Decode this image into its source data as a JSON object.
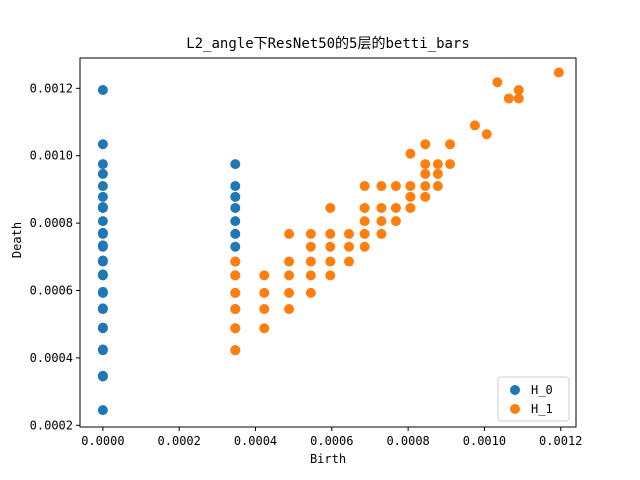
{
  "chart_data": {
    "type": "scatter",
    "title": "L2_angle下ResNet50的5层的betti_bars",
    "xlabel": "Birth",
    "ylabel": "Death",
    "xlim": [
      -6e-05,
      0.00124
    ],
    "ylim": [
      0.000195,
      0.00129
    ],
    "xticks": [
      0.0,
      0.0002,
      0.0004,
      0.0006,
      0.0008,
      0.001,
      0.0012
    ],
    "xtick_labels": [
      "0.0000",
      "0.0002",
      "0.0004",
      "0.0006",
      "0.0008",
      "0.0010",
      "0.0012"
    ],
    "yticks": [
      0.0002,
      0.0004,
      0.0006,
      0.0008,
      0.001,
      0.0012
    ],
    "ytick_labels": [
      "0.0002",
      "0.0004",
      "0.0006",
      "0.0008",
      "0.0010",
      "0.0012"
    ],
    "legend_position": "lower-right",
    "series": [
      {
        "name": "H_0",
        "color": "#1f77b4",
        "points": [
          [
            0,
            0.000245
          ],
          [
            0,
            0.000345
          ],
          [
            0,
            0.000347
          ],
          [
            0,
            0.000423
          ],
          [
            0,
            0.000425
          ],
          [
            0,
            0.000488
          ],
          [
            0,
            0.00049
          ],
          [
            0,
            0.000545
          ],
          [
            0,
            0.000547
          ],
          [
            0,
            0.000593
          ],
          [
            0,
            0.000596
          ],
          [
            0,
            0.000645
          ],
          [
            0,
            0.000648
          ],
          [
            0,
            0.000686
          ],
          [
            0,
            0.000689
          ],
          [
            0,
            0.00073
          ],
          [
            0,
            0.000734
          ],
          [
            0,
            0.000768
          ],
          [
            0,
            0.000771
          ],
          [
            0,
            0.000806
          ],
          [
            0,
            0.000845
          ],
          [
            0,
            0.000848
          ],
          [
            0,
            0.000878
          ],
          [
            0,
            0.00091
          ],
          [
            0,
            0.000946
          ],
          [
            0,
            0.000975
          ],
          [
            0,
            0.001034
          ],
          [
            0,
            0.001195
          ],
          [
            0.000347,
            0.000423
          ],
          [
            0.000347,
            0.000488
          ],
          [
            0.000347,
            0.000545
          ],
          [
            0.000347,
            0.000593
          ],
          [
            0.000347,
            0.000645
          ],
          [
            0.000347,
            0.000686
          ],
          [
            0.000347,
            0.00073
          ],
          [
            0.000347,
            0.000768
          ],
          [
            0.000347,
            0.000806
          ],
          [
            0.000347,
            0.000845
          ],
          [
            0.000347,
            0.000878
          ],
          [
            0.000347,
            0.00091
          ],
          [
            0.000347,
            0.000975
          ]
        ]
      },
      {
        "name": "H_1",
        "color": "#ff7f0e",
        "points": [
          [
            0.000347,
            0.000423
          ],
          [
            0.000347,
            0.000488
          ],
          [
            0.000347,
            0.000545
          ],
          [
            0.000347,
            0.000593
          ],
          [
            0.000347,
            0.000645
          ],
          [
            0.000347,
            0.000686
          ],
          [
            0.000423,
            0.000488
          ],
          [
            0.000423,
            0.000545
          ],
          [
            0.000423,
            0.000593
          ],
          [
            0.000423,
            0.000645
          ],
          [
            0.000488,
            0.000545
          ],
          [
            0.000488,
            0.000593
          ],
          [
            0.000488,
            0.000645
          ],
          [
            0.000488,
            0.000686
          ],
          [
            0.000488,
            0.000768
          ],
          [
            0.000545,
            0.000593
          ],
          [
            0.000545,
            0.000645
          ],
          [
            0.000545,
            0.000686
          ],
          [
            0.000545,
            0.00073
          ],
          [
            0.000545,
            0.000768
          ],
          [
            0.000596,
            0.000645
          ],
          [
            0.000596,
            0.000686
          ],
          [
            0.000596,
            0.00073
          ],
          [
            0.000596,
            0.000768
          ],
          [
            0.000596,
            0.000845
          ],
          [
            0.000645,
            0.000686
          ],
          [
            0.000645,
            0.00073
          ],
          [
            0.000645,
            0.000768
          ],
          [
            0.000686,
            0.00073
          ],
          [
            0.000686,
            0.000768
          ],
          [
            0.000686,
            0.000806
          ],
          [
            0.000686,
            0.000845
          ],
          [
            0.000686,
            0.00091
          ],
          [
            0.00073,
            0.000768
          ],
          [
            0.00073,
            0.000806
          ],
          [
            0.00073,
            0.000845
          ],
          [
            0.00073,
            0.00091
          ],
          [
            0.000768,
            0.000806
          ],
          [
            0.000768,
            0.000845
          ],
          [
            0.000768,
            0.00091
          ],
          [
            0.000806,
            0.000845
          ],
          [
            0.000806,
            0.000878
          ],
          [
            0.000806,
            0.00091
          ],
          [
            0.000806,
            0.001006
          ],
          [
            0.000845,
            0.000878
          ],
          [
            0.000845,
            0.00091
          ],
          [
            0.000845,
            0.000946
          ],
          [
            0.000845,
            0.000975
          ],
          [
            0.000845,
            0.001034
          ],
          [
            0.000878,
            0.00091
          ],
          [
            0.000878,
            0.000946
          ],
          [
            0.000878,
            0.000975
          ],
          [
            0.00091,
            0.000975
          ],
          [
            0.00091,
            0.001034
          ],
          [
            0.000975,
            0.00109
          ],
          [
            0.001006,
            0.001064
          ],
          [
            0.001034,
            0.001218
          ],
          [
            0.001064,
            0.00117
          ],
          [
            0.00109,
            0.00117
          ],
          [
            0.00109,
            0.001195
          ],
          [
            0.001195,
            0.001247
          ]
        ]
      }
    ]
  }
}
